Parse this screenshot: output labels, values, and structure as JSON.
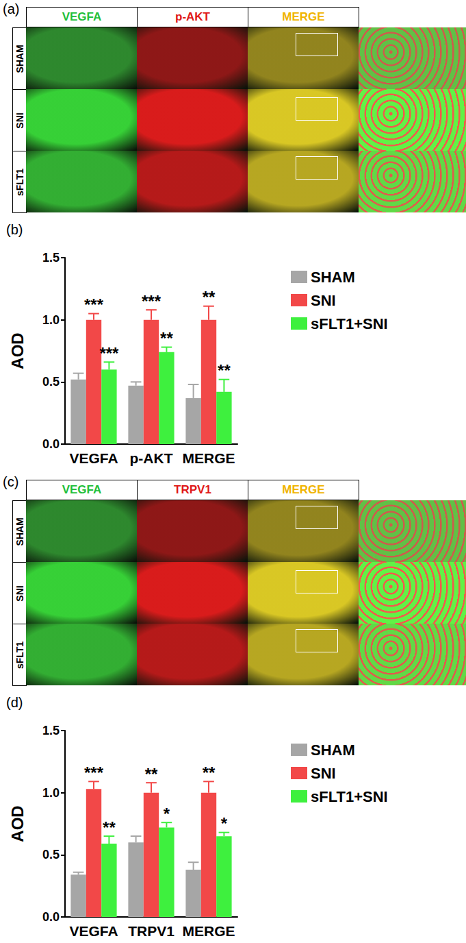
{
  "figure_panels": [
    {
      "label": "(a)",
      "columns": [
        "VEGFA",
        "p-AKT",
        "MERGE"
      ],
      "rows": [
        "SHAM",
        "SNI",
        "sFLT1"
      ]
    },
    {
      "label": "(c)",
      "columns": [
        "VEGFA",
        "TRPV1",
        "MERGE"
      ],
      "rows": [
        "SHAM",
        "SNI",
        "sFLT1"
      ]
    }
  ],
  "chart_data": [
    {
      "type": "bar",
      "title": "(b)",
      "y_label": "AOD",
      "categories": [
        "VEGFA",
        "p-AKT",
        "MERGE"
      ],
      "series": [
        {
          "name": "SHAM",
          "color": "#a6a6a6",
          "values": [
            0.52,
            0.47,
            0.37
          ],
          "errors": [
            0.05,
            0.03,
            0.11
          ],
          "annotations": [
            "",
            "",
            ""
          ]
        },
        {
          "name": "SNI",
          "color": "#f24848",
          "values": [
            1.0,
            1.0,
            1.0
          ],
          "errors": [
            0.05,
            0.08,
            0.11
          ],
          "annotations": [
            "***",
            "***",
            "**"
          ]
        },
        {
          "name": "sFLT1+SNI",
          "color": "#3ef03e",
          "values": [
            0.6,
            0.74,
            0.42
          ],
          "errors": [
            0.06,
            0.04,
            0.1
          ],
          "annotations": [
            "***",
            "**",
            "**"
          ]
        }
      ],
      "ylim": [
        0,
        1.5
      ],
      "yticks": [
        {
          "value": 0,
          "label": "0.0"
        },
        0.5,
        {
          "value": 1,
          "label": "1.0"
        },
        1.5
      ],
      "grid": false,
      "legend": "right"
    },
    {
      "type": "bar",
      "title": "(d)",
      "y_label": "AOD",
      "categories": [
        "VEGFA",
        "TRPV1",
        "MERGE"
      ],
      "series": [
        {
          "name": "SHAM",
          "color": "#a6a6a6",
          "values": [
            0.34,
            0.6,
            0.38
          ],
          "errors": [
            0.02,
            0.05,
            0.06
          ],
          "annotations": [
            "",
            "",
            ""
          ]
        },
        {
          "name": "SNI",
          "color": "#f24848",
          "values": [
            1.03,
            1.0,
            1.0
          ],
          "errors": [
            0.06,
            0.08,
            0.09
          ],
          "annotations": [
            "***",
            "**",
            "**"
          ]
        },
        {
          "name": "sFLT1+SNI",
          "color": "#3ef03e",
          "values": [
            0.59,
            0.72,
            0.65
          ],
          "errors": [
            0.06,
            0.04,
            0.03
          ],
          "annotations": [
            "**",
            "*",
            "*"
          ]
        }
      ],
      "ylim": [
        0,
        1.5
      ],
      "yticks": [
        {
          "value": 0,
          "label": "0.0"
        },
        0.5,
        {
          "value": 1,
          "label": "1.0"
        },
        1.5
      ],
      "grid": false,
      "legend": "right"
    }
  ]
}
